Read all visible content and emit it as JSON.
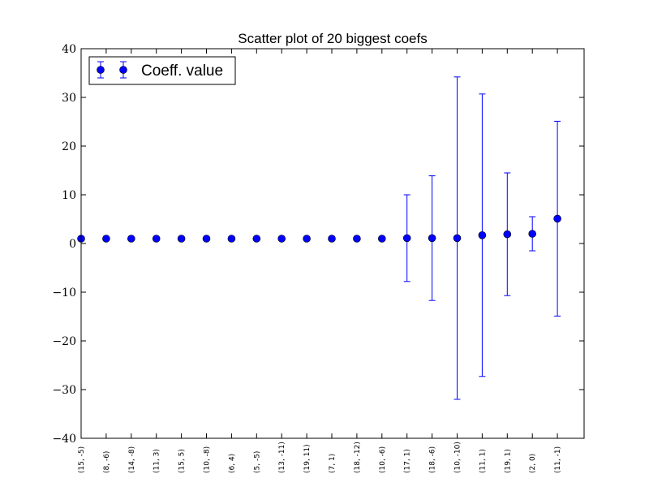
{
  "chart_data": {
    "type": "scatter",
    "title": "Scatter plot of 20 biggest coefs",
    "xlabel": "",
    "ylabel": "",
    "ylim": [
      -40,
      40
    ],
    "yticks": [
      -40,
      -30,
      -20,
      -10,
      0,
      10,
      20,
      30,
      40
    ],
    "ytick_labels": [
      "−40",
      "−30",
      "−20",
      "−10",
      "0",
      "10",
      "20",
      "30",
      "40"
    ],
    "categories": [
      "(15, -5)",
      "(8, -6)",
      "(14, -8)",
      "(11, 3)",
      "(15, 5)",
      "(10, -8)",
      "(6, 4)",
      "(5, -5)",
      "(13, -11)",
      "(19, 11)",
      "(7, 1)",
      "(18, -12)",
      "(10, -6)",
      "(17, 1)",
      "(18, -6)",
      "(10, -10)",
      "(11, 1)",
      "(19, 1)",
      "(2, 0)",
      "(11, -1)"
    ],
    "series": [
      {
        "name": "Coeff. value",
        "values": [
          1.0,
          1.0,
          1.0,
          1.0,
          1.0,
          1.0,
          1.0,
          1.0,
          1.0,
          1.0,
          1.0,
          1.0,
          1.0,
          1.1,
          1.1,
          1.1,
          1.7,
          1.9,
          2.0,
          5.1
        ],
        "errors": [
          0,
          0,
          0,
          0,
          0,
          0,
          0,
          0,
          0,
          0,
          0,
          0,
          0,
          8.9,
          12.8,
          33.1,
          29.0,
          12.6,
          3.5,
          20.0
        ],
        "color": "#0000ff"
      }
    ],
    "legend": {
      "position": "top-left",
      "label": "Coeff. value"
    },
    "grid": false
  }
}
